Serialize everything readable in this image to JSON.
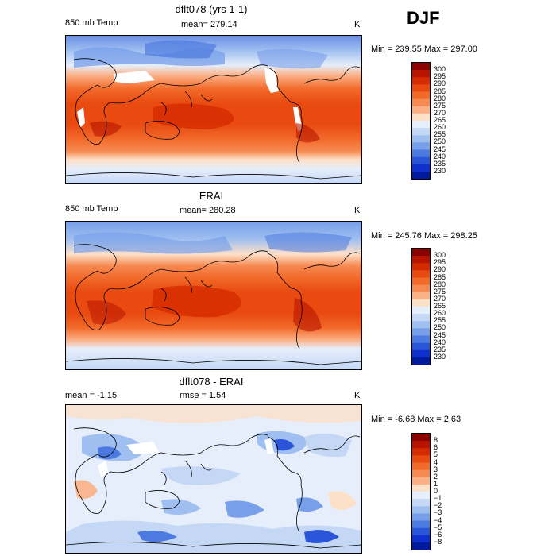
{
  "season": "DJF",
  "panels": [
    {
      "title": "dflt078 (yrs 1-1)",
      "left_label": "850 mb Temp",
      "center_label": "mean= 279.14",
      "units": "K",
      "range_text": "Min = 239.55  Max = 297.00",
      "colorbar": {
        "ticks": [
          "300",
          "295",
          "290",
          "285",
          "280",
          "275",
          "270",
          "265",
          "260",
          "255",
          "250",
          "245",
          "240",
          "235",
          "230"
        ],
        "colors": [
          "#8b0000",
          "#b81400",
          "#d62a00",
          "#e84a10",
          "#f26a2a",
          "#f78a52",
          "#fbb086",
          "#fde0c8",
          "#e6eefb",
          "#c4d8f6",
          "#9fbff0",
          "#789fe9",
          "#4d7ae0",
          "#2a55d8",
          "#0f2fcf",
          "#001a9e"
        ]
      }
    },
    {
      "title": "ERAI",
      "left_label": "850 mb Temp",
      "center_label": "mean= 280.28",
      "units": "K",
      "range_text": "Min = 245.76  Max = 298.25",
      "colorbar": {
        "ticks": [
          "300",
          "295",
          "290",
          "285",
          "280",
          "275",
          "270",
          "265",
          "260",
          "255",
          "250",
          "245",
          "240",
          "235",
          "230"
        ],
        "colors": [
          "#8b0000",
          "#b81400",
          "#d62a00",
          "#e84a10",
          "#f26a2a",
          "#f78a52",
          "#fbb086",
          "#fde0c8",
          "#e6eefb",
          "#c4d8f6",
          "#9fbff0",
          "#789fe9",
          "#4d7ae0",
          "#2a55d8",
          "#0f2fcf",
          "#001a9e"
        ]
      }
    },
    {
      "title": "dflt078 - ERAI",
      "left_label": "mean =   -1.15",
      "center_label": "rmse =    1.54",
      "units": "K",
      "range_text": "Min =  -6.68  Max =    2.63",
      "colorbar": {
        "ticks": [
          "8",
          "6",
          "5",
          "4",
          "3",
          "2",
          "1",
          "0",
          "−1",
          "−2",
          "−3",
          "−4",
          "−5",
          "−6",
          "−8"
        ],
        "colors": [
          "#8b0000",
          "#b81400",
          "#d62a00",
          "#e84a10",
          "#f26a2a",
          "#f78a52",
          "#fbb086",
          "#fde0c8",
          "#e6eefb",
          "#c4d8f6",
          "#9fbff0",
          "#789fe9",
          "#4d7ae0",
          "#2a55d8",
          "#0f2fcf",
          "#001a9e"
        ]
      }
    }
  ],
  "chart_data": {
    "type": "heatmap",
    "season": "DJF",
    "variable": "850 mb Temp",
    "units": "K",
    "maps": [
      {
        "title": "dflt078 (yrs 1-1)",
        "mean": 279.14,
        "min": 239.55,
        "max": 297.0,
        "levels": [
          230,
          235,
          240,
          245,
          250,
          255,
          260,
          265,
          270,
          275,
          280,
          285,
          290,
          295,
          300
        ]
      },
      {
        "title": "ERAI",
        "mean": 280.28,
        "min": 245.76,
        "max": 298.25,
        "levels": [
          230,
          235,
          240,
          245,
          250,
          255,
          260,
          265,
          270,
          275,
          280,
          285,
          290,
          295,
          300
        ]
      },
      {
        "title": "dflt078 - ERAI",
        "mean": -1.15,
        "rmse": 1.54,
        "min": -6.68,
        "max": 2.63,
        "levels": [
          -8,
          -6,
          -5,
          -4,
          -3,
          -2,
          -1,
          0,
          1,
          2,
          3,
          4,
          5,
          6,
          8
        ]
      }
    ]
  }
}
